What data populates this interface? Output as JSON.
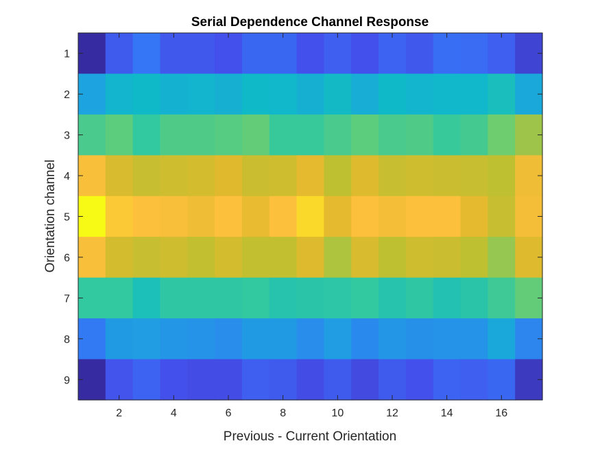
{
  "chart_data": {
    "type": "heatmap",
    "title": "Serial Dependence Channel Response",
    "xlabel": "Previous - Current Orientation",
    "ylabel": "Orientation channel",
    "x": [
      1,
      2,
      3,
      4,
      5,
      6,
      7,
      8,
      9,
      10,
      11,
      12,
      13,
      14,
      15,
      16,
      17
    ],
    "y": [
      1,
      2,
      3,
      4,
      5,
      6,
      7,
      8,
      9
    ],
    "xticks": [
      "2",
      "4",
      "6",
      "8",
      "10",
      "12",
      "14",
      "16"
    ],
    "yticks": [
      "1",
      "2",
      "3",
      "4",
      "5",
      "6",
      "7",
      "8",
      "9"
    ],
    "colormap": "parula",
    "clim": [
      0,
      1
    ],
    "grid": false,
    "colors": {
      "axis": "#262626",
      "background": "#ffffff"
    },
    "values": [
      [
        0.0,
        0.15,
        0.22,
        0.14,
        0.14,
        0.12,
        0.18,
        0.18,
        0.12,
        0.16,
        0.12,
        0.17,
        0.14,
        0.2,
        0.19,
        0.16,
        0.08
      ],
      [
        0.36,
        0.43,
        0.45,
        0.42,
        0.43,
        0.41,
        0.45,
        0.44,
        0.41,
        0.46,
        0.4,
        0.45,
        0.43,
        0.44,
        0.44,
        0.49,
        0.38
      ],
      [
        0.62,
        0.65,
        0.58,
        0.63,
        0.63,
        0.64,
        0.66,
        0.59,
        0.59,
        0.62,
        0.65,
        0.62,
        0.63,
        0.59,
        0.61,
        0.68,
        0.74
      ],
      [
        0.92,
        0.84,
        0.8,
        0.82,
        0.83,
        0.86,
        0.81,
        0.82,
        0.87,
        0.78,
        0.85,
        0.8,
        0.82,
        0.81,
        0.8,
        0.78,
        0.9
      ],
      [
        1.0,
        0.94,
        0.93,
        0.92,
        0.9,
        0.93,
        0.88,
        0.93,
        0.96,
        0.87,
        0.93,
        0.91,
        0.93,
        0.93,
        0.87,
        0.8,
        0.91
      ],
      [
        0.92,
        0.83,
        0.8,
        0.82,
        0.79,
        0.83,
        0.79,
        0.79,
        0.85,
        0.76,
        0.84,
        0.78,
        0.82,
        0.81,
        0.78,
        0.73,
        0.85
      ],
      [
        0.58,
        0.58,
        0.5,
        0.57,
        0.57,
        0.57,
        0.58,
        0.54,
        0.55,
        0.56,
        0.58,
        0.54,
        0.57,
        0.52,
        0.55,
        0.6,
        0.66
      ],
      [
        0.23,
        0.33,
        0.34,
        0.32,
        0.31,
        0.29,
        0.33,
        0.33,
        0.29,
        0.34,
        0.28,
        0.32,
        0.3,
        0.31,
        0.31,
        0.38,
        0.27
      ],
      [
        0.0,
        0.13,
        0.17,
        0.12,
        0.11,
        0.11,
        0.16,
        0.15,
        0.11,
        0.15,
        0.1,
        0.15,
        0.12,
        0.17,
        0.16,
        0.18,
        0.05
      ]
    ]
  }
}
